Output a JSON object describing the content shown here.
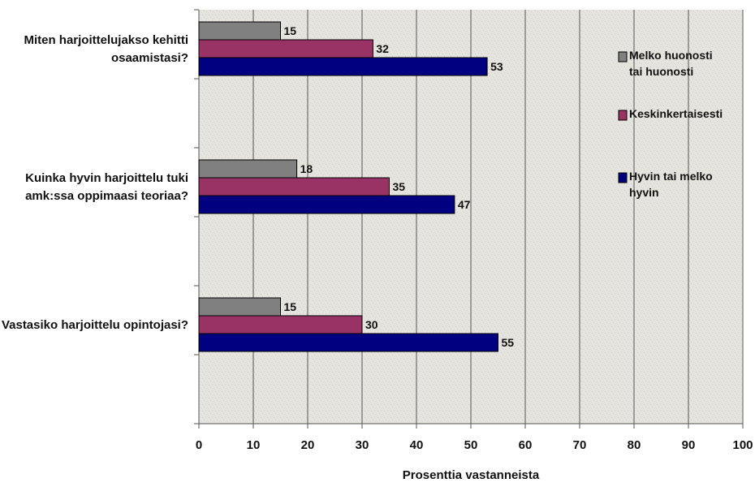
{
  "chart_data": {
    "type": "bar",
    "orientation": "horizontal",
    "title": "",
    "xlabel": "Prosenttia vastanneista",
    "ylabel": "",
    "xlim": [
      0,
      100
    ],
    "x_ticks": [
      0,
      10,
      20,
      30,
      40,
      50,
      60,
      70,
      80,
      90,
      100
    ],
    "grid": true,
    "legend_position": "right",
    "categories": [
      {
        "lines": [
          "Miten harjoittelujakso kehitti",
          "osaamistasi?"
        ]
      },
      {
        "lines": [
          "Kuinka hyvin harjoittelu tuki",
          "amk:ssa oppimaasi teoriaa?"
        ]
      },
      {
        "lines": [
          "Vastasiko harjoittelu opintojasi?"
        ]
      }
    ],
    "series": [
      {
        "name": "Melko huonosti tai huonosti",
        "legend_lines": [
          "Melko huonosti",
          "tai huonosti"
        ],
        "color": "#808080",
        "values": [
          15,
          18,
          15
        ]
      },
      {
        "name": "Keskinkertaisesti",
        "legend_lines": [
          "Keskinkertaisesti"
        ],
        "color": "#993366",
        "values": [
          32,
          35,
          30
        ]
      },
      {
        "name": "Hyvin tai melko hyvin",
        "legend_lines": [
          "Hyvin tai melko",
          "hyvin"
        ],
        "color": "#000080",
        "values": [
          53,
          47,
          55
        ]
      }
    ]
  }
}
